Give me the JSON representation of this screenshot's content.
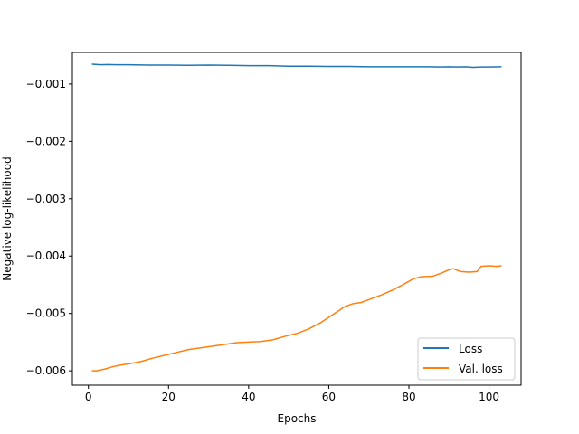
{
  "chart_data": {
    "type": "line",
    "title": "",
    "xlabel": "Epochs",
    "ylabel": "Negative log-likelihood",
    "xlim": [
      -4,
      108
    ],
    "ylim": [
      -0.00625,
      -0.00045
    ],
    "xticks": [
      0,
      20,
      40,
      60,
      80,
      100
    ],
    "xtick_labels": [
      "0",
      "20",
      "40",
      "60",
      "80",
      "100"
    ],
    "yticks": [
      -0.001,
      -0.002,
      -0.003,
      -0.004,
      -0.005,
      -0.006
    ],
    "ytick_labels": [
      "−0.001",
      "−0.002",
      "−0.003",
      "−0.004",
      "−0.005",
      "−0.006"
    ],
    "grid": false,
    "legend_position": "lower-right",
    "series": [
      {
        "name": "Loss",
        "color": "#1f77b4",
        "x": [
          1,
          3,
          5,
          7,
          10,
          15,
          20,
          25,
          30,
          35,
          40,
          45,
          50,
          55,
          60,
          65,
          70,
          75,
          80,
          85,
          88,
          90,
          92,
          94,
          96,
          98,
          100,
          103
        ],
        "y": [
          -0.000655,
          -0.000665,
          -0.00066,
          -0.000665,
          -0.000665,
          -0.00067,
          -0.00067,
          -0.000675,
          -0.00067,
          -0.000675,
          -0.00068,
          -0.00068,
          -0.00069,
          -0.00069,
          -0.000695,
          -0.000695,
          -0.0007,
          -0.0007,
          -0.0007,
          -0.0007,
          -0.000705,
          -0.0007,
          -0.000705,
          -0.0007,
          -0.00071,
          -0.000705,
          -0.000705,
          -0.0007
        ]
      },
      {
        "name": "Val. loss",
        "color": "#ff7f0e",
        "x": [
          1,
          2,
          4,
          6,
          8,
          10,
          13,
          16,
          19,
          22,
          25,
          28,
          31,
          34,
          37,
          40,
          43,
          46,
          49,
          52,
          55,
          58,
          61,
          64,
          66,
          68,
          70,
          73,
          76,
          79,
          81,
          83,
          86,
          88,
          90,
          91,
          93,
          95,
          97,
          98,
          100,
          102,
          103
        ],
        "y": [
          -0.006,
          -0.006,
          -0.00597,
          -0.00593,
          -0.0059,
          -0.00588,
          -0.00584,
          -0.00578,
          -0.00573,
          -0.00568,
          -0.00563,
          -0.0056,
          -0.00557,
          -0.00554,
          -0.00551,
          -0.0055,
          -0.00549,
          -0.00546,
          -0.0054,
          -0.00535,
          -0.00527,
          -0.00516,
          -0.00502,
          -0.00488,
          -0.00483,
          -0.00481,
          -0.00476,
          -0.00468,
          -0.00459,
          -0.00448,
          -0.0044,
          -0.00436,
          -0.00435,
          -0.0043,
          -0.00424,
          -0.00422,
          -0.00427,
          -0.00428,
          -0.00427,
          -0.00418,
          -0.00417,
          -0.00418,
          -0.00417
        ]
      }
    ]
  }
}
